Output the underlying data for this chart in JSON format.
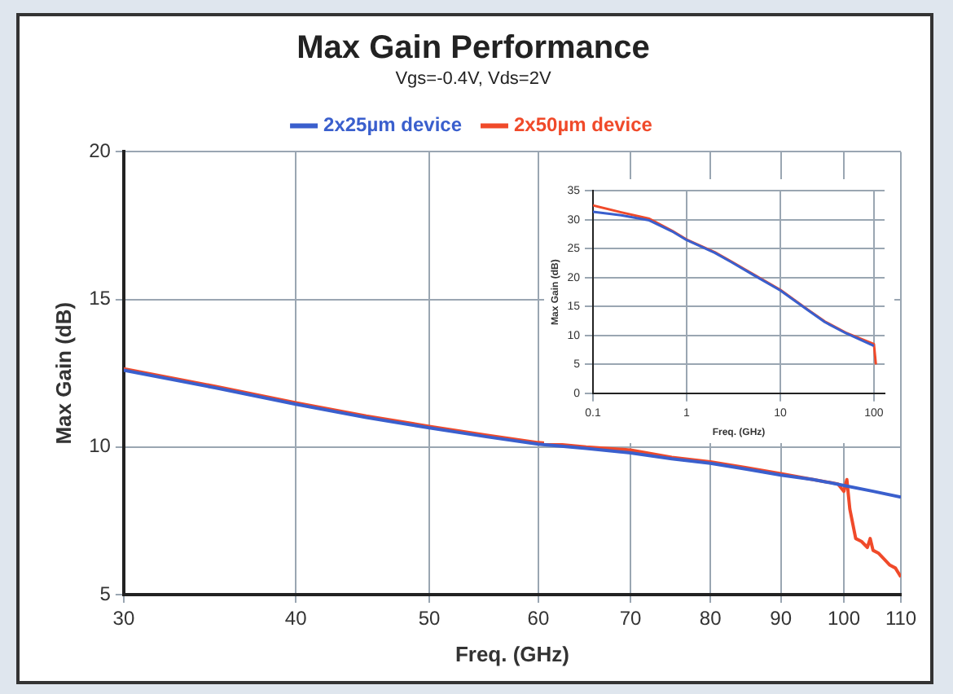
{
  "chart_data": [
    {
      "type": "line",
      "title": "Max Gain Performance",
      "subtitle": "Vgs=-0.4V, Vds=2V",
      "xlabel": "Freq. (GHz)",
      "ylabel": "Max Gain (dB)",
      "log": "x",
      "grid": true,
      "legend": "top",
      "marker": "none",
      "line_style": "solid",
      "xlim": [
        30,
        110
      ],
      "ylim": [
        5,
        20
      ],
      "xticks": [
        30,
        40,
        50,
        60,
        70,
        80,
        90,
        100,
        110
      ],
      "yticks": [
        5,
        10,
        15,
        20
      ],
      "series": [
        {
          "name": "2x25µm device",
          "color": "#3a5fcd",
          "x": [
            30,
            35,
            40,
            45,
            50,
            55,
            60,
            65,
            70,
            75,
            80,
            85,
            90,
            95,
            100,
            105,
            110
          ],
          "values": [
            12.6,
            12.0,
            11.45,
            11.0,
            10.65,
            10.35,
            10.1,
            9.95,
            9.8,
            9.6,
            9.45,
            9.25,
            9.05,
            8.9,
            8.7,
            8.5,
            8.3
          ]
        },
        {
          "name": "2x50µm device",
          "color": "#f04a2a",
          "x": [
            30,
            35,
            40,
            45,
            50,
            55,
            60,
            65,
            70,
            75,
            80,
            85,
            90,
            95,
            99,
            100,
            100.5,
            101,
            102,
            103,
            104,
            104.5,
            105,
            106,
            107,
            108,
            109,
            110
          ],
          "values": [
            12.65,
            12.05,
            11.5,
            11.05,
            10.7,
            10.4,
            10.15,
            10.0,
            9.9,
            9.65,
            9.5,
            9.3,
            9.1,
            8.9,
            8.75,
            8.5,
            8.9,
            7.9,
            6.9,
            6.8,
            6.6,
            6.9,
            6.5,
            6.4,
            6.2,
            6.0,
            5.9,
            5.6
          ]
        }
      ]
    },
    {
      "type": "line",
      "xlabel": "Freq. (GHz)",
      "ylabel": "Max Gain (dB)",
      "log": "x",
      "grid": true,
      "marker": "none",
      "line_style": "solid",
      "xlim": [
        0.1,
        130
      ],
      "ylim": [
        0,
        35
      ],
      "xticks": [
        0.1,
        1,
        10,
        100
      ],
      "yticks": [
        0,
        5,
        10,
        15,
        20,
        25,
        30,
        35
      ],
      "series": [
        {
          "color": "#3a5fcd",
          "x": [
            0.1,
            0.2,
            0.4,
            0.7,
            1,
            2,
            3,
            5,
            10,
            20,
            30,
            50,
            100
          ],
          "values": [
            31.4,
            30.8,
            29.9,
            28.0,
            26.5,
            24.3,
            22.7,
            20.6,
            17.8,
            14.3,
            12.3,
            10.4,
            8.2
          ]
        },
        {
          "color": "#f04a2a",
          "x": [
            0.1,
            0.2,
            0.4,
            0.7,
            1,
            2,
            3,
            5,
            10,
            20,
            30,
            50,
            100,
            105
          ],
          "values": [
            32.5,
            31.3,
            30.2,
            28.1,
            26.6,
            24.4,
            22.8,
            20.7,
            17.9,
            14.4,
            12.4,
            10.5,
            8.5,
            5.0
          ]
        }
      ]
    }
  ]
}
